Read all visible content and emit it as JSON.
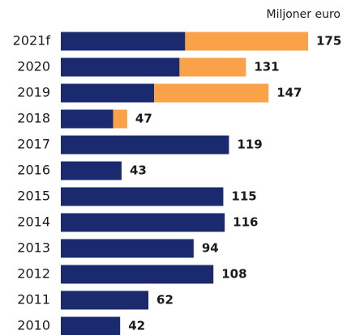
{
  "chart_data": {
    "type": "stacked-barh",
    "unit_label": "Miljoner euro",
    "categories": [
      "2021f",
      "2020",
      "2019",
      "2018",
      "2017",
      "2016",
      "2015",
      "2014",
      "2013",
      "2012",
      "2011",
      "2010"
    ],
    "series": [
      {
        "color": "#1b2a6e",
        "values": [
          88,
          84,
          66,
          37,
          119,
          43,
          115,
          116,
          94,
          108,
          62,
          42
        ]
      },
      {
        "color": "#f9a24a",
        "values": [
          87,
          47,
          81,
          10,
          null,
          null,
          null,
          null,
          null,
          null,
          null,
          null
        ]
      }
    ],
    "totals": [
      175,
      131,
      147,
      47,
      119,
      43,
      115,
      116,
      94,
      108,
      62,
      42
    ]
  }
}
